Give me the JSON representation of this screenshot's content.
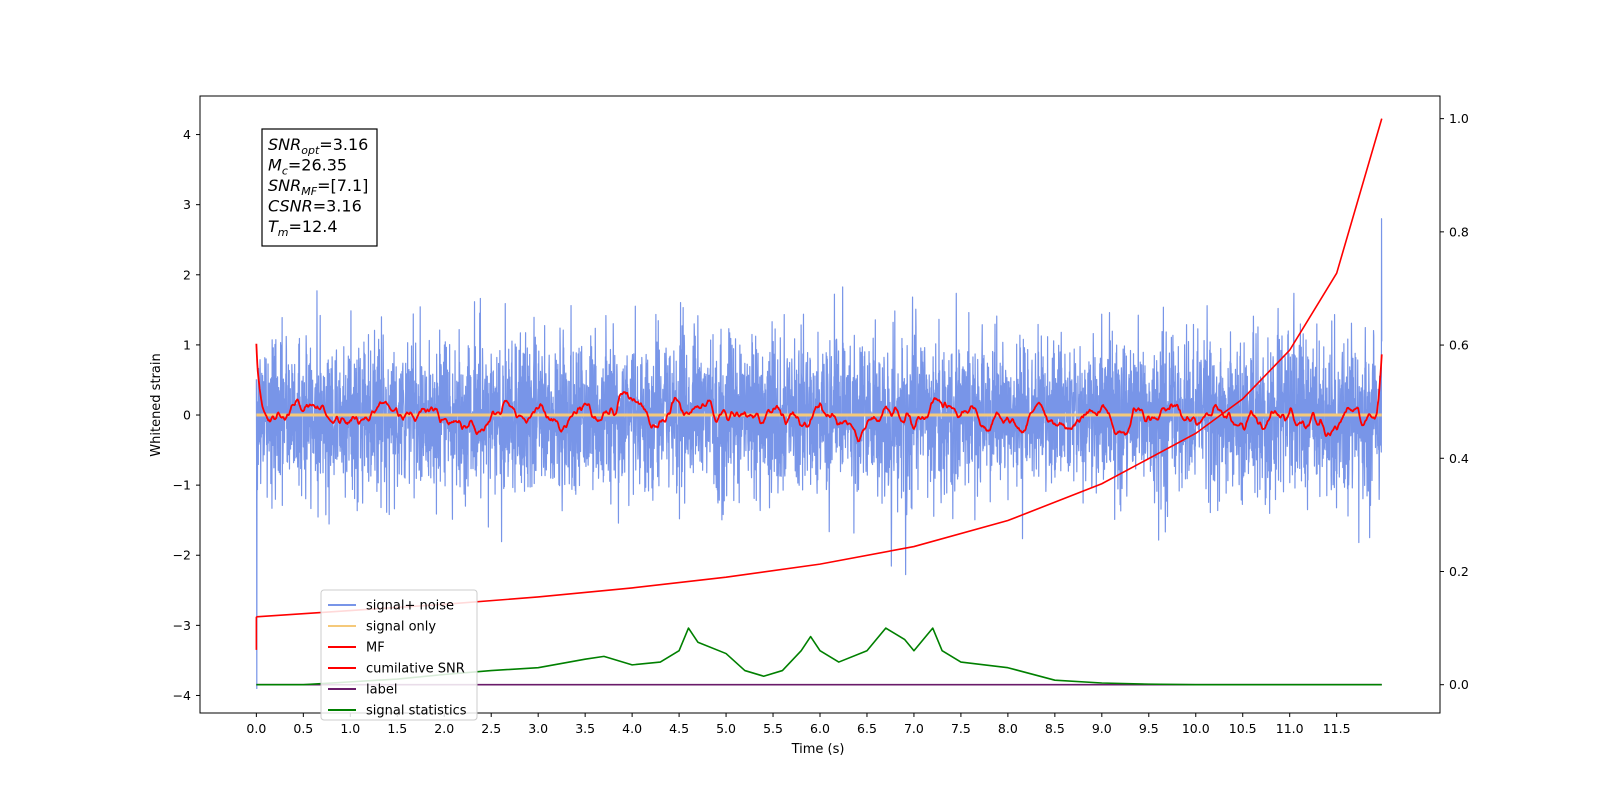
{
  "chart_data": {
    "type": "line",
    "xlabel": "Time (s)",
    "ylabel": "Whitened strain",
    "xlim": [
      -0.6,
      12.6
    ],
    "ylim": [
      -4.25,
      4.55
    ],
    "y2lim": [
      -0.05,
      1.04
    ],
    "grid": false,
    "legend_position": "lower-left",
    "xticks": [
      "0.0",
      "0.5",
      "1.0",
      "1.5",
      "2.0",
      "2.5",
      "3.0",
      "3.5",
      "4.0",
      "4.5",
      "5.0",
      "5.5",
      "6.0",
      "6.5",
      "7.0",
      "7.5",
      "8.0",
      "8.5",
      "9.0",
      "9.5",
      "10.0",
      "10.5",
      "11.0",
      "11.5"
    ],
    "yticks": [
      "−4",
      "−3",
      "−2",
      "−1",
      "0",
      "1",
      "2",
      "3",
      "4"
    ],
    "y2ticks": [
      "0.0",
      "0.2",
      "0.4",
      "0.6",
      "0.8",
      "1.0"
    ],
    "stats_box": [
      {
        "base": "SNR",
        "sub": "opt",
        "value": "=3.16"
      },
      {
        "base": "M",
        "sub": "c",
        "value": "=26.35"
      },
      {
        "base": "SNR",
        "sub": "MF",
        "value": "=[7.1]"
      },
      {
        "base": "CSNR",
        "sub": "",
        "value": "=3.16"
      },
      {
        "base": "T",
        "sub": "m",
        "value": "=12.4"
      }
    ],
    "series": [
      {
        "name": "signal+ noise",
        "color": "#7895e8",
        "axis": "left",
        "description_values": {
          "x_range": [
            0.0,
            11.98
          ],
          "mean": 0.0,
          "std": 0.55,
          "range": [
            -3.9,
            2.8
          ]
        }
      },
      {
        "name": "signal only",
        "color": "#f5c97a",
        "axis": "left",
        "x": [
          0.0,
          11.98
        ],
        "y": [
          0.0,
          0.0
        ]
      },
      {
        "name": "MF",
        "color": "#ff0000",
        "axis": "left",
        "description_values": {
          "x_range": [
            0.0,
            11.98
          ],
          "start": 1.0,
          "end": 0.85,
          "amplitude": 0.25
        }
      },
      {
        "name": "cumilative SNR",
        "color": "#ff0000",
        "axis": "right",
        "x": [
          0.0,
          1.0,
          2.0,
          3.0,
          4.0,
          5.0,
          6.0,
          7.0,
          8.0,
          9.0,
          10.0,
          10.5,
          11.0,
          11.5,
          11.98
        ],
        "y": [
          0.12,
          0.131,
          0.142,
          0.155,
          0.171,
          0.19,
          0.213,
          0.244,
          0.29,
          0.355,
          0.444,
          0.505,
          0.591,
          0.727,
          1.0
        ]
      },
      {
        "name": "label",
        "color": "#6a1b6a",
        "axis": "right",
        "x": [
          0.0,
          11.98
        ],
        "y": [
          0.0,
          0.0
        ]
      },
      {
        "name": "signal statistics",
        "color": "#008000",
        "axis": "right",
        "x": [
          0.0,
          0.5,
          1.0,
          1.5,
          2.0,
          2.5,
          3.0,
          3.5,
          3.7,
          4.0,
          4.3,
          4.5,
          4.6,
          4.7,
          5.0,
          5.2,
          5.4,
          5.6,
          5.8,
          5.9,
          6.0,
          6.2,
          6.5,
          6.7,
          6.9,
          7.0,
          7.2,
          7.3,
          7.5,
          8.0,
          8.5,
          9.0,
          9.5,
          10.0,
          10.5,
          11.0,
          11.5,
          11.98
        ],
        "y": [
          0.0,
          0.0,
          0.005,
          0.01,
          0.018,
          0.025,
          0.03,
          0.045,
          0.05,
          0.035,
          0.04,
          0.06,
          0.1,
          0.075,
          0.055,
          0.025,
          0.015,
          0.025,
          0.06,
          0.085,
          0.06,
          0.04,
          0.06,
          0.1,
          0.08,
          0.06,
          0.1,
          0.06,
          0.04,
          0.03,
          0.008,
          0.003,
          0.001,
          0.0,
          0.0,
          0.0,
          0.0,
          0.0
        ]
      }
    ]
  }
}
